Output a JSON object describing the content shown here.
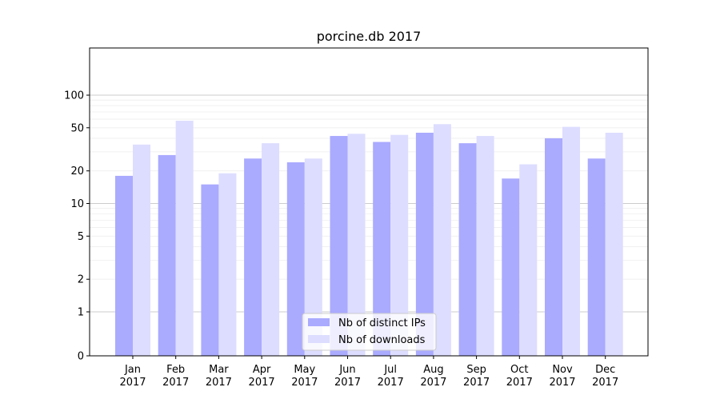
{
  "chart_data": {
    "type": "bar",
    "title": "porcine.db 2017",
    "xlabel": "",
    "ylabel": "",
    "yscale": "symlog",
    "yticks": [
      0,
      1,
      2,
      5,
      10,
      20,
      50,
      100
    ],
    "ytick_labels": [
      "0",
      "1",
      "2",
      "5",
      "10",
      "20",
      "50",
      "100"
    ],
    "categories": [
      {
        "month": "Jan",
        "year": "2017"
      },
      {
        "month": "Feb",
        "year": "2017"
      },
      {
        "month": "Mar",
        "year": "2017"
      },
      {
        "month": "Apr",
        "year": "2017"
      },
      {
        "month": "May",
        "year": "2017"
      },
      {
        "month": "Jun",
        "year": "2017"
      },
      {
        "month": "Jul",
        "year": "2017"
      },
      {
        "month": "Aug",
        "year": "2017"
      },
      {
        "month": "Sep",
        "year": "2017"
      },
      {
        "month": "Oct",
        "year": "2017"
      },
      {
        "month": "Nov",
        "year": "2017"
      },
      {
        "month": "Dec",
        "year": "2017"
      }
    ],
    "series": [
      {
        "name": "Nb of distinct IPs",
        "color": "#aaaaff",
        "values": [
          18,
          28,
          15,
          26,
          24,
          42,
          37,
          45,
          36,
          17,
          40,
          26
        ]
      },
      {
        "name": "Nb of downloads",
        "color": "#ddddff",
        "values": [
          35,
          58,
          19,
          36,
          26,
          44,
          43,
          54,
          42,
          23,
          51,
          45
        ]
      }
    ],
    "grid": true,
    "legend": "bottom-center"
  }
}
